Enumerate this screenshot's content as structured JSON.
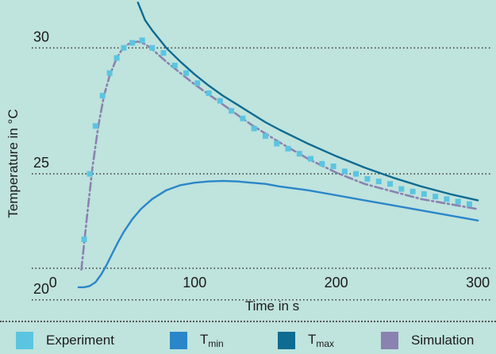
{
  "chart_data": {
    "type": "line",
    "xlabel": "Time in s",
    "ylabel": "Temperature in °C",
    "xlim": [
      -15,
      310
    ],
    "ylim": [
      19.3,
      31.9
    ],
    "xticks": [
      0,
      100,
      200,
      300
    ],
    "yticks": [
      20,
      25,
      30
    ],
    "grid": "horizontal-dotted",
    "legend_position": "bottom",
    "series": [
      {
        "name": "Experiment",
        "kind": "markers",
        "color": "#5bc5e0",
        "x": [
          22,
          26,
          30,
          35,
          40,
          45,
          50,
          56,
          63,
          70,
          78,
          86,
          94,
          102,
          110,
          118,
          126,
          134,
          142,
          150,
          158,
          166,
          174,
          182,
          190,
          198,
          206,
          214,
          222,
          230,
          238,
          246,
          254,
          262,
          270,
          278,
          286,
          294
        ],
        "y": [
          22.4,
          25.0,
          26.9,
          28.1,
          29.0,
          29.6,
          30.0,
          30.2,
          30.3,
          30.0,
          29.8,
          29.3,
          29.0,
          28.6,
          28.2,
          27.9,
          27.5,
          27.2,
          26.8,
          26.5,
          26.2,
          26.0,
          25.8,
          25.6,
          25.4,
          25.3,
          25.1,
          25.0,
          24.8,
          24.7,
          24.6,
          24.4,
          24.3,
          24.2,
          24.1,
          24.0,
          23.9,
          23.8
        ]
      },
      {
        "name": "T_min",
        "name_main": "T",
        "name_sub": "min",
        "kind": "line",
        "color": "#2a86c8",
        "x": [
          18,
          22,
          26,
          30,
          34,
          38,
          42,
          46,
          50,
          56,
          62,
          70,
          80,
          90,
          100,
          110,
          120,
          130,
          140,
          150,
          160,
          180,
          200,
          220,
          240,
          260,
          280,
          300
        ],
        "y": [
          20.5,
          20.5,
          20.55,
          20.7,
          21.0,
          21.4,
          21.85,
          22.3,
          22.7,
          23.2,
          23.6,
          24.0,
          24.35,
          24.55,
          24.65,
          24.7,
          24.72,
          24.7,
          24.65,
          24.6,
          24.5,
          24.35,
          24.15,
          23.95,
          23.75,
          23.55,
          23.35,
          23.15
        ]
      },
      {
        "name": "T_max",
        "name_main": "T",
        "name_sub": "max",
        "kind": "line",
        "color": "#0e6b91",
        "x": [
          60,
          65,
          70,
          80,
          90,
          100,
          110,
          120,
          130,
          140,
          150,
          160,
          180,
          200,
          220,
          240,
          260,
          280,
          300
        ],
        "y": [
          31.8,
          31.1,
          30.7,
          30.0,
          29.45,
          28.95,
          28.5,
          28.1,
          27.75,
          27.4,
          27.05,
          26.75,
          26.2,
          25.7,
          25.25,
          24.85,
          24.5,
          24.2,
          23.95
        ]
      },
      {
        "name": "Simulation",
        "kind": "dashdot",
        "color": "#8a82b0",
        "x": [
          20,
          24,
          28,
          32,
          36,
          40,
          45,
          50,
          55,
          60,
          65,
          70,
          80,
          90,
          100,
          110,
          120,
          130,
          140,
          150,
          160,
          180,
          200,
          220,
          240,
          260,
          280,
          300
        ],
        "y": [
          21.2,
          23.3,
          25.3,
          26.9,
          28.1,
          28.9,
          29.6,
          30.05,
          30.2,
          30.25,
          30.15,
          29.95,
          29.45,
          29.0,
          28.55,
          28.15,
          27.75,
          27.35,
          26.95,
          26.6,
          26.25,
          25.6,
          25.05,
          24.6,
          24.3,
          24.0,
          23.8,
          23.6
        ]
      }
    ]
  }
}
